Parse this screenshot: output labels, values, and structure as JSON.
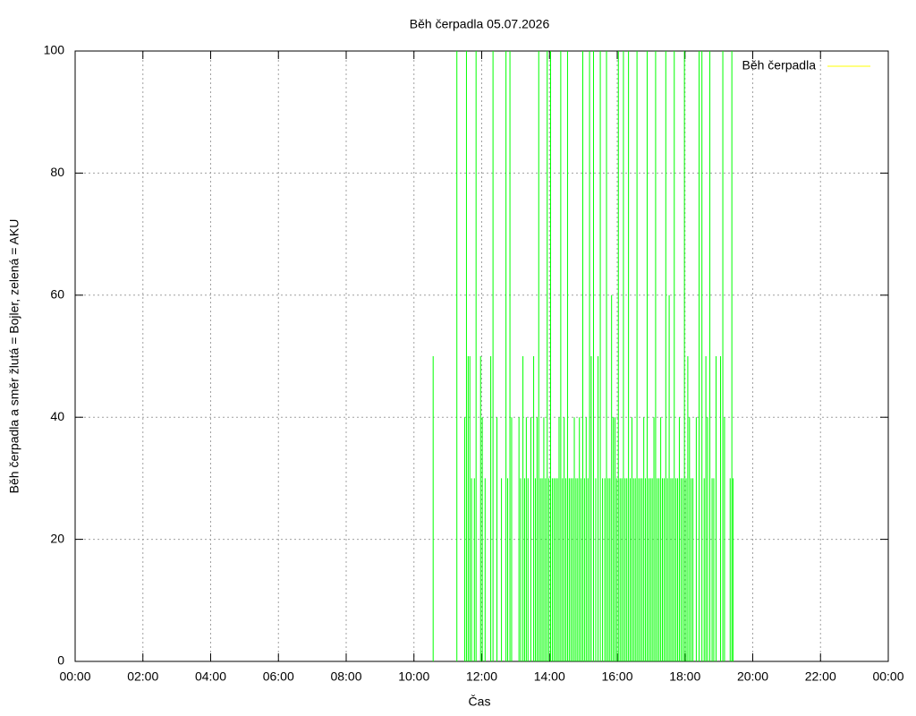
{
  "chart_data": {
    "type": "impulse",
    "title": "Běh čerpadla 05.07.2026",
    "xlabel": "Čas",
    "ylabel": "Běh čerpadla a směr žlutá = Bojler, zelená = AKU",
    "series": [
      {
        "name": "Běh čerpadla",
        "color": "#00ff00",
        "legend_color": "#ffff00",
        "x": [
          634,
          676,
          690,
          693,
          696,
          699,
          702,
          707,
          710,
          718,
          721,
          726,
          736,
          740,
          747,
          755,
          763,
          766,
          770,
          773,
          786,
          789,
          793,
          796,
          799,
          802,
          807,
          812,
          815,
          818,
          821,
          824,
          827,
          830,
          833,
          836,
          839,
          842,
          845,
          848,
          851,
          854,
          857,
          860,
          863,
          866,
          869,
          872,
          875,
          878,
          881,
          884,
          887,
          890,
          893,
          896,
          899,
          902,
          905,
          908,
          911,
          914,
          918,
          922,
          926,
          930,
          934,
          938,
          941,
          944,
          947,
          950,
          953,
          956,
          959,
          962,
          965,
          968,
          971,
          974,
          977,
          980,
          983,
          986,
          989,
          992,
          995,
          998,
          1001,
          1004,
          1007,
          1010,
          1013,
          1016,
          1019,
          1022,
          1025,
          1028,
          1031,
          1034,
          1037,
          1040,
          1043,
          1046,
          1049,
          1052,
          1055,
          1058,
          1061,
          1064,
          1067,
          1070,
          1073,
          1076,
          1079,
          1082,
          1085,
          1088,
          1091,
          1094,
          1100,
          1105,
          1110,
          1114,
          1117,
          1120,
          1124,
          1128,
          1131,
          1135,
          1143,
          1147,
          1150,
          1160,
          1163,
          1165
        ],
        "values": [
          50,
          100,
          40,
          100,
          50,
          50,
          30,
          30,
          100,
          50,
          40,
          30,
          50,
          100,
          40,
          30,
          100,
          30,
          100,
          40,
          40,
          30,
          50,
          30,
          40,
          30,
          40,
          50,
          30,
          40,
          100,
          30,
          30,
          40,
          30,
          100,
          30,
          100,
          30,
          30,
          30,
          30,
          40,
          100,
          30,
          40,
          30,
          100,
          30,
          30,
          30,
          40,
          30,
          30,
          40,
          30,
          100,
          30,
          40,
          30,
          100,
          50,
          100,
          30,
          50,
          100,
          30,
          30,
          100,
          30,
          30,
          60,
          40,
          40,
          30,
          100,
          30,
          30,
          100,
          30,
          30,
          100,
          30,
          40,
          30,
          30,
          100,
          30,
          30,
          30,
          40,
          30,
          100,
          30,
          30,
          30,
          40,
          100,
          30,
          30,
          40,
          30,
          30,
          100,
          30,
          60,
          30,
          30,
          100,
          30,
          30,
          40,
          30,
          30,
          100,
          30,
          50,
          40,
          30,
          30,
          40,
          100,
          100,
          30,
          50,
          40,
          100,
          30,
          30,
          50,
          50,
          100,
          40,
          30,
          100,
          30
        ]
      }
    ],
    "xlim": [
      0,
      1440
    ],
    "xticks": [
      {
        "value": 0,
        "label": "00:00"
      },
      {
        "value": 120,
        "label": "02:00"
      },
      {
        "value": 240,
        "label": "04:00"
      },
      {
        "value": 360,
        "label": "06:00"
      },
      {
        "value": 480,
        "label": "08:00"
      },
      {
        "value": 600,
        "label": "10:00"
      },
      {
        "value": 720,
        "label": "12:00"
      },
      {
        "value": 840,
        "label": "14:00"
      },
      {
        "value": 960,
        "label": "16:00"
      },
      {
        "value": 1080,
        "label": "18:00"
      },
      {
        "value": 1200,
        "label": "20:00"
      },
      {
        "value": 1320,
        "label": "22:00"
      },
      {
        "value": 1440,
        "label": "00:00"
      }
    ],
    "ylim": [
      0,
      100
    ],
    "yticks": [
      0,
      20,
      40,
      60,
      80,
      100
    ],
    "grid": true,
    "legend": "upper right"
  }
}
